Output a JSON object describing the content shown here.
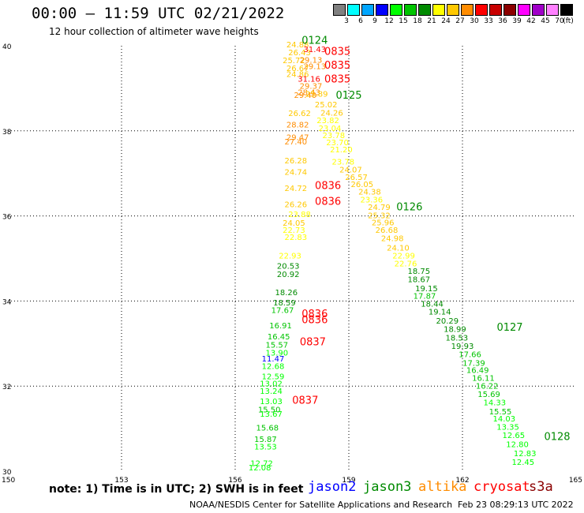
{
  "title": "00:00 – 11:59 UTC 02/21/2022",
  "subtitle": "12 hour collection of altimeter wave heights",
  "legend": {
    "colors": [
      "#808080",
      "#00ffff",
      "#00a6ff",
      "#0000ff",
      "#00ff00",
      "#00c400",
      "#008a00",
      "#ffff00",
      "#ffc800",
      "#ff8c00",
      "#ff0000",
      "#c80000",
      "#8b0000",
      "#ff00ff",
      "#a000c8",
      "#ff80ff",
      "#000000"
    ],
    "labels": [
      "3",
      "6",
      "9",
      "12",
      "15",
      "18",
      "21",
      "24",
      "27",
      "30",
      "33",
      "36",
      "39",
      "42",
      "45",
      "70",
      "(ft)"
    ]
  },
  "note": "note:  1) Time is in UTC;  2) SWH is in feet",
  "satellites": [
    {
      "name": "jason2",
      "color": "#0000ff"
    },
    {
      "name": "jason3",
      "color": "#008a00"
    },
    {
      "name": "altika",
      "color": "#ff8c00"
    },
    {
      "name": "cryosat",
      "color": "#ff0000"
    },
    {
      "name": "s3a",
      "color": "#8b0000"
    }
  ],
  "credit": "NOAA/NESDIS Center for Satellite Applications and Research",
  "stamp": "Feb 23 08:29:13 UTC 2022",
  "axes": {
    "lon_ticks": [
      "150",
      "153",
      "156",
      "159",
      "162",
      "165"
    ],
    "lat_ticks": [
      "30",
      "32",
      "34",
      "36",
      "38",
      "40"
    ],
    "lon_range": [
      150,
      165
    ],
    "lat_range": [
      30,
      40
    ]
  },
  "chart_data": {
    "type": "scatter",
    "xlabel": "",
    "ylabel": "",
    "xlim": [
      150,
      165
    ],
    "ylim": [
      30,
      40
    ],
    "grid": true,
    "series": [
      {
        "name": "altika",
        "points": [
          {
            "lon": 157.65,
            "lat": 39.96,
            "v": "24.88"
          },
          {
            "lon": 157.7,
            "lat": 39.78,
            "v": "26.43"
          },
          {
            "lon": 157.55,
            "lat": 39.59,
            "v": "25.72"
          },
          {
            "lon": 157.65,
            "lat": 39.41,
            "v": "26.67"
          },
          {
            "lon": 157.65,
            "lat": 39.27,
            "v": "24.86"
          },
          {
            "lon": 158.0,
            "lat": 38.99,
            "v": "29.37"
          },
          {
            "lon": 157.95,
            "lat": 38.84,
            "v": "28.43"
          },
          {
            "lon": 157.85,
            "lat": 38.78,
            "v": "29.40"
          },
          {
            "lon": 157.7,
            "lat": 38.35,
            "v": "26.62"
          },
          {
            "lon": 157.65,
            "lat": 38.08,
            "v": "28.82"
          },
          {
            "lon": 157.65,
            "lat": 37.78,
            "v": "29.47"
          },
          {
            "lon": 157.6,
            "lat": 37.68,
            "v": "27.40"
          },
          {
            "lon": 157.6,
            "lat": 37.24,
            "v": "26.28"
          },
          {
            "lon": 157.6,
            "lat": 36.97,
            "v": "24.74"
          },
          {
            "lon": 157.6,
            "lat": 36.59,
            "v": "24.72"
          },
          {
            "lon": 157.6,
            "lat": 36.21,
            "v": "26.26"
          }
        ]
      },
      {
        "name": "cryosat",
        "points": [
          {
            "lon": 158.7,
            "lat": 39.79,
            "v": "0835"
          },
          {
            "lon": 158.7,
            "lat": 39.46,
            "v": "0835"
          },
          {
            "lon": 158.7,
            "lat": 39.14,
            "v": "0835"
          },
          {
            "lon": 158.45,
            "lat": 36.63,
            "v": "0836"
          },
          {
            "lon": 158.45,
            "lat": 36.26,
            "v": "0836"
          },
          {
            "lon": 158.1,
            "lat": 33.62,
            "v": "0836"
          },
          {
            "lon": 158.1,
            "lat": 33.48,
            "v": "0836"
          },
          {
            "lon": 158.05,
            "lat": 32.96,
            "v": "0837"
          },
          {
            "lon": 157.85,
            "lat": 31.59,
            "v": "0837"
          }
        ]
      },
      {
        "name": "jason3",
        "points": [
          {
            "lon": 158.1,
            "lat": 40.05,
            "v": "0124"
          },
          {
            "lon": 159.0,
            "lat": 38.76,
            "v": "0125"
          },
          {
            "lon": 160.6,
            "lat": 36.13,
            "v": "0126"
          },
          {
            "lon": 163.25,
            "lat": 33.3,
            "v": "0127"
          },
          {
            "lon": 164.5,
            "lat": 30.73,
            "v": "0128"
          }
        ]
      },
      {
        "name": "track_a",
        "points": [
          {
            "lon": 158.1,
            "lat": 39.85,
            "v": "31.43"
          },
          {
            "lon": 158.0,
            "lat": 39.6,
            "v": "29.13"
          },
          {
            "lon": 158.1,
            "lat": 39.45,
            "v": "29.13"
          },
          {
            "lon": 157.95,
            "lat": 39.16,
            "v": "31.16"
          },
          {
            "lon": 158.15,
            "lat": 38.8,
            "v": "25.89"
          },
          {
            "lon": 158.4,
            "lat": 38.55,
            "v": "25.02"
          },
          {
            "lon": 158.55,
            "lat": 38.36,
            "v": "24.26"
          },
          {
            "lon": 158.45,
            "lat": 38.18,
            "v": "23.82"
          },
          {
            "lon": 158.5,
            "lat": 38.0,
            "v": "23.04"
          },
          {
            "lon": 158.6,
            "lat": 37.83,
            "v": "23.78"
          },
          {
            "lon": 158.7,
            "lat": 37.66,
            "v": "23.70"
          },
          {
            "lon": 158.8,
            "lat": 37.5,
            "v": "21.20"
          },
          {
            "lon": 158.85,
            "lat": 37.21,
            "v": "23.78"
          },
          {
            "lon": 159.05,
            "lat": 37.02,
            "v": "24.07"
          },
          {
            "lon": 159.2,
            "lat": 36.85,
            "v": "26.57"
          },
          {
            "lon": 159.35,
            "lat": 36.68,
            "v": "26.05"
          },
          {
            "lon": 159.55,
            "lat": 36.5,
            "v": "24.38"
          },
          {
            "lon": 159.6,
            "lat": 36.32,
            "v": "23.36"
          },
          {
            "lon": 159.8,
            "lat": 36.14,
            "v": "24.79"
          },
          {
            "lon": 159.8,
            "lat": 35.95,
            "v": "25.32"
          },
          {
            "lon": 159.9,
            "lat": 35.78,
            "v": "25.96"
          },
          {
            "lon": 160.0,
            "lat": 35.6,
            "v": "26.68"
          },
          {
            "lon": 160.15,
            "lat": 35.41,
            "v": "24.98"
          },
          {
            "lon": 160.3,
            "lat": 35.19,
            "v": "24.10"
          },
          {
            "lon": 160.45,
            "lat": 35.0,
            "v": "22.99"
          },
          {
            "lon": 160.5,
            "lat": 34.81,
            "v": "22.76"
          },
          {
            "lon": 160.85,
            "lat": 34.64,
            "v": "18.75"
          },
          {
            "lon": 160.85,
            "lat": 34.44,
            "v": "18.67"
          },
          {
            "lon": 161.05,
            "lat": 34.23,
            "v": "19.15"
          },
          {
            "lon": 161.0,
            "lat": 34.05,
            "v": "17.87"
          },
          {
            "lon": 161.2,
            "lat": 33.87,
            "v": "18.44"
          },
          {
            "lon": 161.4,
            "lat": 33.68,
            "v": "19.14"
          },
          {
            "lon": 161.6,
            "lat": 33.47,
            "v": "20.29"
          },
          {
            "lon": 161.8,
            "lat": 33.27,
            "v": "18.99"
          },
          {
            "lon": 161.85,
            "lat": 33.07,
            "v": "18.53"
          },
          {
            "lon": 162.0,
            "lat": 32.88,
            "v": "19.93"
          },
          {
            "lon": 162.2,
            "lat": 32.68,
            "v": "17.66"
          },
          {
            "lon": 162.3,
            "lat": 32.48,
            "v": "17.39"
          },
          {
            "lon": 162.4,
            "lat": 32.31,
            "v": "16.49"
          },
          {
            "lon": 162.55,
            "lat": 32.12,
            "v": "16.11"
          },
          {
            "lon": 162.65,
            "lat": 31.94,
            "v": "16.22"
          },
          {
            "lon": 162.7,
            "lat": 31.74,
            "v": "15.69"
          },
          {
            "lon": 162.85,
            "lat": 31.55,
            "v": "14.33"
          },
          {
            "lon": 163.0,
            "lat": 31.34,
            "v": "15.55"
          },
          {
            "lon": 163.1,
            "lat": 31.17,
            "v": "14.03"
          },
          {
            "lon": 163.2,
            "lat": 30.97,
            "v": "13.35"
          },
          {
            "lon": 163.35,
            "lat": 30.78,
            "v": "12.65"
          },
          {
            "lon": 163.45,
            "lat": 30.57,
            "v": "12.80"
          },
          {
            "lon": 163.65,
            "lat": 30.35,
            "v": "12.83"
          },
          {
            "lon": 163.6,
            "lat": 30.15,
            "v": "12.45"
          }
        ]
      },
      {
        "name": "track_b",
        "points": [
          {
            "lon": 157.7,
            "lat": 35.97,
            "v": "23.88"
          },
          {
            "lon": 157.55,
            "lat": 35.77,
            "v": "24.05"
          },
          {
            "lon": 157.55,
            "lat": 35.6,
            "v": "22.73"
          },
          {
            "lon": 157.6,
            "lat": 35.44,
            "v": "22.83"
          },
          {
            "lon": 157.45,
            "lat": 35.0,
            "v": "22.93"
          },
          {
            "lon": 157.4,
            "lat": 34.76,
            "v": "20.53"
          },
          {
            "lon": 157.4,
            "lat": 34.56,
            "v": "20.92"
          },
          {
            "lon": 157.35,
            "lat": 34.14,
            "v": "18.26"
          },
          {
            "lon": 157.3,
            "lat": 33.9,
            "v": "18.59"
          },
          {
            "lon": 157.25,
            "lat": 33.72,
            "v": "17.67"
          },
          {
            "lon": 157.2,
            "lat": 33.36,
            "v": "16.91"
          },
          {
            "lon": 157.15,
            "lat": 33.1,
            "v": "16.45"
          },
          {
            "lon": 157.1,
            "lat": 32.9,
            "v": "15.57"
          },
          {
            "lon": 157.1,
            "lat": 32.72,
            "v": "13.90"
          },
          {
            "lon": 157.0,
            "lat": 32.58,
            "v": "11.47"
          },
          {
            "lon": 157.0,
            "lat": 32.4,
            "v": "12.68"
          },
          {
            "lon": 157.0,
            "lat": 32.16,
            "v": "12.59"
          },
          {
            "lon": 156.95,
            "lat": 31.99,
            "v": "13.02"
          },
          {
            "lon": 156.95,
            "lat": 31.82,
            "v": "13.24"
          },
          {
            "lon": 156.95,
            "lat": 31.58,
            "v": "13.03"
          },
          {
            "lon": 156.9,
            "lat": 31.38,
            "v": "15.50"
          },
          {
            "lon": 156.95,
            "lat": 31.28,
            "v": "13.67"
          },
          {
            "lon": 156.85,
            "lat": 30.96,
            "v": "15.68"
          },
          {
            "lon": 156.8,
            "lat": 30.69,
            "v": "15.87"
          },
          {
            "lon": 156.8,
            "lat": 30.51,
            "v": "13.53"
          },
          {
            "lon": 156.7,
            "lat": 30.12,
            "v": "12.72"
          },
          {
            "lon": 156.65,
            "lat": 30.02,
            "v": "12.08"
          }
        ]
      }
    ]
  }
}
